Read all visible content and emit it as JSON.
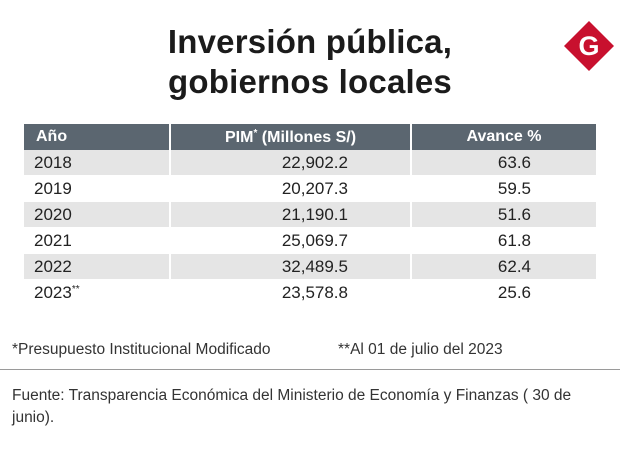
{
  "header": {
    "title_line1": "Inversión pública,",
    "title_line2": "gobiernos locales",
    "logo_letter": "G",
    "logo_icon": "gestion-logo-icon",
    "logo_color": "#c8102e"
  },
  "chart_data": {
    "type": "table",
    "title": "Inversión pública, gobiernos locales",
    "columns": [
      "Año",
      "PIM",
      "Avance %"
    ],
    "column_labels": {
      "year": "Año",
      "pim": "PIM",
      "pim_mark": "*",
      "pim_units": " (Millones S/)",
      "advance": "Avance %"
    },
    "rows": [
      {
        "year": "2018",
        "mark": "",
        "pim": "22,902.2",
        "advance": "63.6"
      },
      {
        "year": "2019",
        "mark": "",
        "pim": "20,207.3",
        "advance": "59.5"
      },
      {
        "year": "2020",
        "mark": "",
        "pim": "21,190.1",
        "advance": "51.6"
      },
      {
        "year": "2021",
        "mark": "",
        "pim": "25,069.7",
        "advance": "61.8"
      },
      {
        "year": "2022",
        "mark": "",
        "pim": "32,489.5",
        "advance": "62.4"
      },
      {
        "year": "2023",
        "mark": "**",
        "pim": "23,578.8",
        "advance": "25.6"
      }
    ],
    "header_color": "#5b6670",
    "stripe_color": "#e5e5e5"
  },
  "notes": {
    "pim_mark": "*",
    "pim_text": "Presupuesto Institucional Modificado",
    "date_mark": "**",
    "date_text": "Al 01 de julio del 2023"
  },
  "source": {
    "text": "Fuente: Transparencia Económica del Ministerio de Economía y Finanzas ( 30 de junio)."
  }
}
